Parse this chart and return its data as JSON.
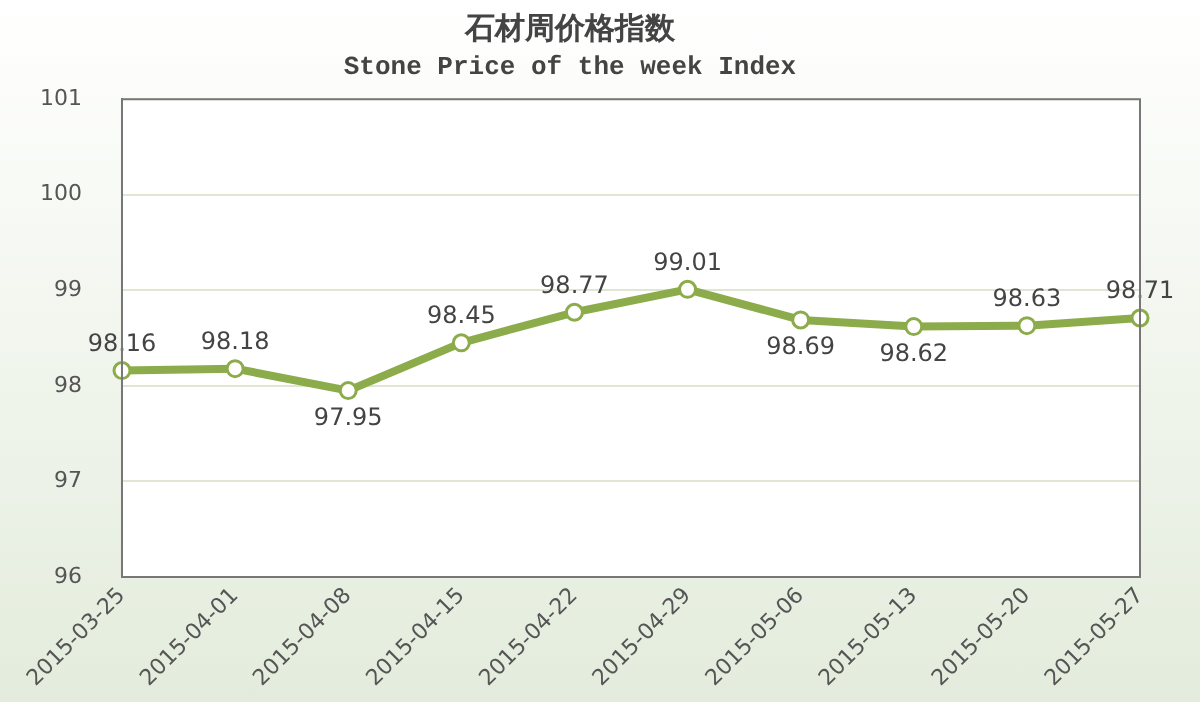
{
  "chart_data": {
    "type": "line",
    "title": "石材周价格指数",
    "subtitle": "Stone Price of the week Index",
    "categories": [
      "2015-03-25",
      "2015-04-01",
      "2015-04-08",
      "2015-04-15",
      "2015-04-22",
      "2015-04-29",
      "2015-05-06",
      "2015-05-13",
      "2015-05-20",
      "2015-05-27"
    ],
    "series": [
      {
        "color": "#8cac4c",
        "values": [
          98.16,
          98.18,
          97.95,
          98.45,
          98.77,
          99.01,
          98.69,
          98.62,
          98.63,
          98.71
        ]
      }
    ],
    "ylim": [
      96,
      101
    ],
    "yticks": [
      96,
      97,
      98,
      99,
      100,
      101
    ],
    "grid": "y",
    "marker": "circle",
    "line_style": "solid",
    "data_labels": true,
    "legend": false
  }
}
